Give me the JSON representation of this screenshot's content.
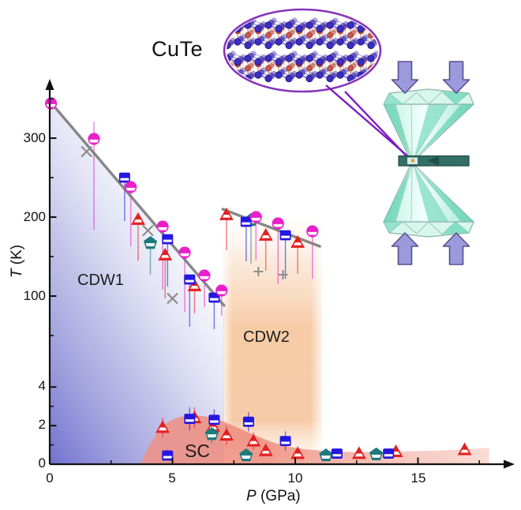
{
  "title": "CuTe",
  "labels": {
    "cdw1": "CDW1",
    "cdw2": "CDW2",
    "sc": "SC"
  },
  "axes": {
    "x_symbol": "P",
    "x_unit": " (GPa)",
    "y_symbol": "T",
    "y_unit": " (K)",
    "x_tick_labels": [
      "0",
      "5",
      "10",
      "15"
    ],
    "y_tick_labels_high": [
      "100",
      "200",
      "300"
    ],
    "y_tick_labels_low": [
      "0",
      "2",
      "4"
    ]
  },
  "colors": {
    "pink": "#ea1fca",
    "blue": "#2417df",
    "red": "#e32020",
    "teal": "#1e7a7e",
    "gray_marker": "#8c8c8c",
    "boundary_line": "#7d7d7d",
    "cdw1_fill": "#6f6fd0",
    "cdw2_fill": "#f6c9a2",
    "sc_fill": "#ee8d7d",
    "arrow_fill": "#9c99dd",
    "arrow_stroke": "#55518f",
    "diamond_mint": "#8fe0c6",
    "gasket": "#336f66",
    "magnifier_purple": "#8833bb"
  },
  "chart_data": {
    "type": "scatter",
    "title": "CuTe pressure-temperature phase diagram",
    "xlabel": "P (GPa)",
    "ylabel": "T (K)",
    "x_axis": {
      "ticks": [
        0,
        5,
        10,
        15
      ],
      "minor_ticks": [
        2.5,
        7.5,
        12.5,
        17.5
      ],
      "max": 18.5
    },
    "y_axis_high_segment": {
      "ticks": [
        100,
        200,
        300
      ],
      "minor_ticks": [
        50,
        150,
        250,
        350
      ],
      "range": [
        50,
        375
      ]
    },
    "y_axis_low_segment": {
      "ticks": [
        0,
        2,
        4
      ],
      "minor_ticks": [
        1,
        3
      ],
      "range": [
        0,
        4
      ]
    },
    "boundary_lines": [
      {
        "name": "cdw1-boundary",
        "points": [
          [
            0.05,
            345
          ],
          [
            7.1,
            88
          ]
        ]
      },
      {
        "name": "cdw2-boundary",
        "points": [
          [
            7.05,
            210
          ],
          [
            11.0,
            163
          ]
        ]
      }
    ],
    "cdw2_column_p_range": [
      7.05,
      11.1
    ],
    "sc_dome_outline": [
      [
        3.7,
        0
      ],
      [
        4.2,
        1.5
      ],
      [
        5.0,
        2.4
      ],
      [
        5.8,
        2.55
      ],
      [
        6.6,
        2.45
      ],
      [
        7.5,
        2.0
      ],
      [
        8.5,
        1.4
      ],
      [
        9.5,
        0.95
      ],
      [
        10.5,
        0.75
      ],
      [
        12.0,
        0.62
      ],
      [
        14.0,
        0.66
      ],
      [
        16.0,
        0.7
      ],
      [
        17.9,
        0.85
      ]
    ],
    "series": [
      {
        "name": "red half-filled triangles",
        "marker": "triangle",
        "color": "#e32020",
        "points": [
          {
            "p": 3.6,
            "t": 197,
            "ed": 52
          },
          {
            "p": 4.7,
            "t": 152,
            "ed": 55
          },
          {
            "p": 5.9,
            "t": 113,
            "ed": 35
          },
          {
            "p": 7.2,
            "t": 203,
            "ed": 45
          },
          {
            "p": 8.8,
            "t": 177,
            "ed": 45
          },
          {
            "p": 10.1,
            "t": 168,
            "ed": 40
          },
          {
            "p": 4.6,
            "t": 1.9,
            "eu": 0.5,
            "ed": 0.5
          },
          {
            "p": 5.9,
            "t": 2.4,
            "eu": 0.55,
            "ed": 0.55
          },
          {
            "p": 6.65,
            "t": 1.95,
            "eu": 0.5,
            "ed": 0.5
          },
          {
            "p": 7.2,
            "t": 1.5,
            "eu": 0.5,
            "ed": 0.5
          },
          {
            "p": 8.3,
            "t": 1.2,
            "eu": 0.45,
            "ed": 0.45
          },
          {
            "p": 8.8,
            "t": 0.7,
            "eu": 0.25,
            "ed": 0.25
          },
          {
            "p": 10.1,
            "t": 0.55,
            "eu": 0.2
          },
          {
            "p": 12.6,
            "t": 0.55,
            "eu": 0.15
          },
          {
            "p": 14.1,
            "t": 0.65,
            "eu": 0.2
          },
          {
            "p": 16.9,
            "t": 0.75,
            "eu": 0.25
          }
        ]
      },
      {
        "name": "teal half-filled pentagons",
        "marker": "pentagon",
        "color": "#1e7a7e",
        "points": [
          {
            "p": 4.1,
            "t": 167,
            "ed": 40
          },
          {
            "p": 8.2,
            "t": 196,
            "ed": 55
          },
          {
            "p": 6.6,
            "t": 1.55,
            "eu": 0.45,
            "ed": 0.45
          },
          {
            "p": 8.0,
            "t": 0.45
          },
          {
            "p": 11.25,
            "t": 0.45
          },
          {
            "p": 13.3,
            "t": 0.5
          }
        ]
      },
      {
        "name": "blue half-filled squares",
        "marker": "square",
        "color": "#2417df",
        "points": [
          {
            "p": 3.05,
            "t": 250,
            "ed": 55
          },
          {
            "p": 4.8,
            "t": 172,
            "ed": 60
          },
          {
            "p": 5.7,
            "t": 121,
            "ed": 60
          },
          {
            "p": 6.7,
            "t": 98,
            "ed": 40
          },
          {
            "p": 8.0,
            "t": 194,
            "ed": 50
          },
          {
            "p": 9.6,
            "t": 177,
            "ed": 55
          },
          {
            "p": 4.8,
            "t": 0.45,
            "eu": 0.3,
            "ed": 0.25
          },
          {
            "p": 5.7,
            "t": 2.35,
            "eu": 0.6,
            "ed": 0.6
          },
          {
            "p": 6.7,
            "t": 2.3,
            "eu": 0.55,
            "ed": 0.55
          },
          {
            "p": 8.1,
            "t": 2.2,
            "eu": 0.5,
            "ed": 0.5
          },
          {
            "p": 9.6,
            "t": 1.2,
            "eu": 0.5,
            "ed": 0.5
          },
          {
            "p": 11.7,
            "t": 0.55
          },
          {
            "p": 13.8,
            "t": 0.55
          }
        ]
      },
      {
        "name": "pink half-filled circles",
        "marker": "circle",
        "color": "#ea1fca",
        "points": [
          {
            "p": 0.05,
            "t": 344
          },
          {
            "p": 1.8,
            "t": 299,
            "eu": 22,
            "ed": 115
          },
          {
            "p": 3.3,
            "t": 238,
            "ed": 75
          },
          {
            "p": 4.6,
            "t": 188,
            "ed": 80
          },
          {
            "p": 5.5,
            "t": 155,
            "ed": 75
          },
          {
            "p": 6.3,
            "t": 126,
            "ed": 40
          },
          {
            "p": 7.0,
            "t": 107,
            "ed": 32
          },
          {
            "p": 8.4,
            "t": 200,
            "ed": 55
          },
          {
            "p": 9.3,
            "t": 192,
            "ed": 77
          },
          {
            "p": 10.7,
            "t": 182,
            "ed": 60
          }
        ]
      },
      {
        "name": "gray x markers",
        "marker": "x",
        "color": "#8c8c8c",
        "points": [
          {
            "p": 1.5,
            "t": 283
          },
          {
            "p": 4.0,
            "t": 183
          },
          {
            "p": 5.0,
            "t": 97
          }
        ]
      },
      {
        "name": "gray plus markers",
        "marker": "plus",
        "color": "#8c8c8c",
        "points": [
          {
            "p": 8.5,
            "t": 131
          },
          {
            "p": 9.5,
            "t": 127
          }
        ]
      }
    ]
  }
}
